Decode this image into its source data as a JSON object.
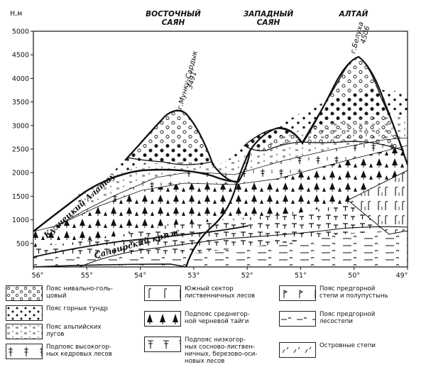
{
  "y_axis": {
    "unit": "H,м",
    "ticks": [
      "5000",
      "4500",
      "4000",
      "3500",
      "3000",
      "2500",
      "2000",
      "1500",
      "1000",
      "500"
    ]
  },
  "x_axis": {
    "ticks": [
      "56°",
      "55°",
      "54°",
      "53°",
      "52°",
      "51°",
      "50°",
      "49°"
    ]
  },
  "regions": {
    "vostochny_sayan": {
      "line1": "ВОСТОЧНЫЙ",
      "line2": "САЯН"
    },
    "zapadny_sayan": {
      "line1": "ЗАПАДНЫЙ",
      "line2": "САЯН"
    },
    "altai": {
      "line1": "АЛТАЙ"
    }
  },
  "ranges": {
    "kuznetsky_alatau": "Кузнецкий Алатау",
    "salairsky_kryazh": "Салаирский кряж"
  },
  "peaks": {
    "munku_sardyk_name": "г.Мунку-Сардык",
    "munku_sardyk_height": "3491",
    "belukha_name": "г.Белуха",
    "belukha_height": "4506"
  },
  "legend": [
    {
      "pattern": "o",
      "label": "Пояс нивально-голь-\nцовый"
    },
    {
      "pattern": "dots",
      "label": "Пояс горных тундр"
    },
    {
      "pattern": "alpine",
      "label": "Пояс альпийских\nлугов"
    },
    {
      "pattern": "cedar",
      "label": "Подпояс высокогор-\nных кедровых лесов"
    },
    {
      "pattern": "larch",
      "label": "Южный сектор\nлиственничных лесов"
    },
    {
      "pattern": "taiga",
      "label": "Подпояс среднегор-\nной черневой тайги"
    },
    {
      "pattern": "pine",
      "label": "Подпояс низкогор-\nных сосново-листвен-\nничных, березово-оси-\nновых лесов"
    },
    {
      "pattern": "steppe",
      "label": "Пояс предгорной\nстепи и полупустынь"
    },
    {
      "pattern": "forest_steppe",
      "label": "Пояс предгорной\nлесостепи"
    },
    {
      "pattern": "islands",
      "label": "Островные степи"
    }
  ]
}
